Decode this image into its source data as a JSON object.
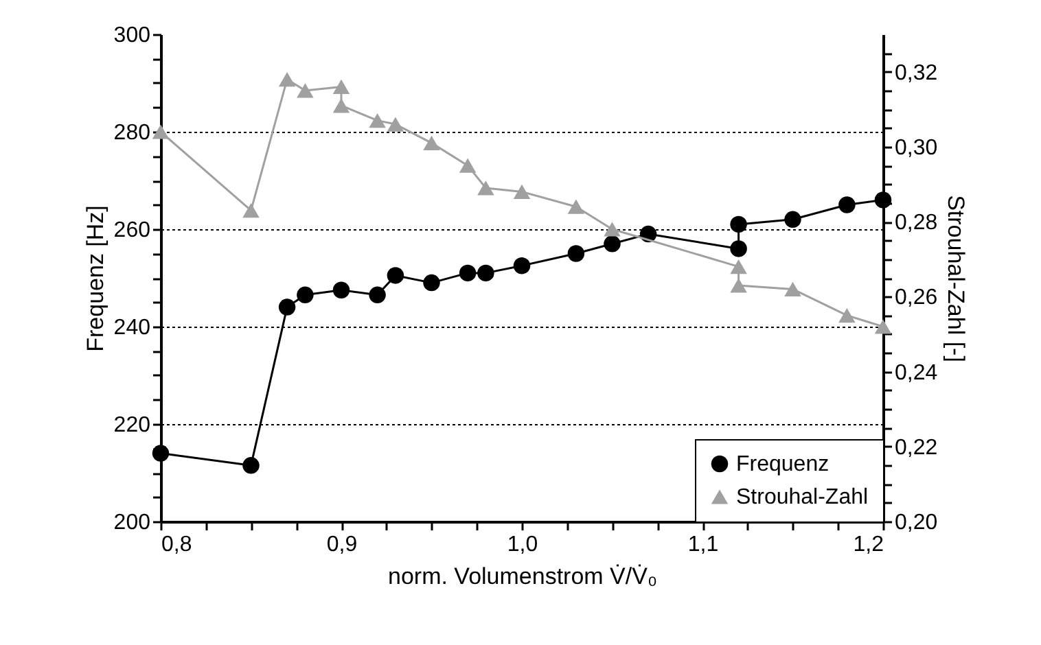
{
  "chart_data": {
    "type": "line",
    "xlabel": "norm. Volumenstrom V̇/V̇₀",
    "ylabel": "Frequenz [Hz]",
    "y2label": "Strouhal-Zahl [-]",
    "xlim": [
      0.8,
      1.2
    ],
    "ylim": [
      200,
      300
    ],
    "y2lim": [
      0.2,
      0.33
    ],
    "xticks": [
      {
        "value": 0.8,
        "label": "0,8"
      },
      {
        "value": 0.825,
        "label": null
      },
      {
        "value": 0.85,
        "label": null
      },
      {
        "value": 0.875,
        "label": null
      },
      {
        "value": 0.9,
        "label": "0,9"
      },
      {
        "value": 0.925,
        "label": null
      },
      {
        "value": 0.95,
        "label": null
      },
      {
        "value": 0.975,
        "label": null
      },
      {
        "value": 1.0,
        "label": "1,0"
      },
      {
        "value": 1.025,
        "label": null
      },
      {
        "value": 1.05,
        "label": null
      },
      {
        "value": 1.075,
        "label": null
      },
      {
        "value": 1.1,
        "label": "1,1"
      },
      {
        "value": 1.125,
        "label": null
      },
      {
        "value": 1.15,
        "label": null
      },
      {
        "value": 1.175,
        "label": null
      },
      {
        "value": 1.2,
        "label": "1,2"
      }
    ],
    "yticks": [
      200,
      {
        "value": 205,
        "label": null
      },
      {
        "value": 210,
        "label": null
      },
      {
        "value": 215,
        "label": null
      },
      220,
      {
        "value": 225,
        "label": null
      },
      {
        "value": 230,
        "label": null
      },
      {
        "value": 235,
        "label": null
      },
      240,
      {
        "value": 245,
        "label": null
      },
      {
        "value": 250,
        "label": null
      },
      {
        "value": 255,
        "label": null
      },
      260,
      {
        "value": 265,
        "label": null
      },
      {
        "value": 270,
        "label": null
      },
      {
        "value": 275,
        "label": null
      },
      280,
      {
        "value": 285,
        "label": null
      },
      {
        "value": 290,
        "label": null
      },
      {
        "value": 295,
        "label": null
      },
      300
    ],
    "y2ticks": [
      {
        "value": 0.2,
        "label": "0,20"
      },
      {
        "value": 0.205,
        "label": null
      },
      {
        "value": 0.21,
        "label": null
      },
      {
        "value": 0.215,
        "label": null
      },
      {
        "value": 0.22,
        "label": "0,22"
      },
      {
        "value": 0.225,
        "label": null
      },
      {
        "value": 0.23,
        "label": null
      },
      {
        "value": 0.235,
        "label": null
      },
      {
        "value": 0.24,
        "label": "0,24"
      },
      {
        "value": 0.245,
        "label": null
      },
      {
        "value": 0.25,
        "label": null
      },
      {
        "value": 0.255,
        "label": null
      },
      {
        "value": 0.26,
        "label": "0,26"
      },
      {
        "value": 0.265,
        "label": null
      },
      {
        "value": 0.27,
        "label": null
      },
      {
        "value": 0.275,
        "label": null
      },
      {
        "value": 0.28,
        "label": "0,28"
      },
      {
        "value": 0.285,
        "label": null
      },
      {
        "value": 0.29,
        "label": null
      },
      {
        "value": 0.295,
        "label": null
      },
      {
        "value": 0.3,
        "label": "0,30"
      },
      {
        "value": 0.305,
        "label": null
      },
      {
        "value": 0.31,
        "label": null
      },
      {
        "value": 0.315,
        "label": null
      },
      {
        "value": 0.32,
        "label": "0,32"
      },
      {
        "value": 0.325,
        "label": null
      }
    ],
    "grid": "y",
    "legend": "bottom right",
    "series": [
      {
        "name": "Frequenz",
        "color": "#000000",
        "marker": "circle",
        "x": [
          0.8,
          0.85,
          0.87,
          0.88,
          0.9,
          0.92,
          0.93,
          0.95,
          0.97,
          0.98,
          1.0,
          1.03,
          1.05,
          1.07,
          1.12,
          1.12,
          1.15,
          1.18,
          1.2
        ],
        "values": [
          214,
          211.5,
          244,
          246.5,
          247.5,
          246.5,
          250.5,
          249,
          251,
          251,
          252.5,
          255,
          257,
          259,
          256,
          261,
          262,
          265,
          266
        ]
      },
      {
        "name": "Strouhal-Zahl",
        "color": "#a0a0a0",
        "marker": "triangle",
        "axis": "y2",
        "x": [
          0.8,
          0.85,
          0.87,
          0.88,
          0.9,
          0.9,
          0.92,
          0.93,
          0.95,
          0.97,
          0.98,
          1.0,
          1.03,
          1.05,
          1.12,
          1.12,
          1.15,
          1.18,
          1.2
        ],
        "values": [
          0.304,
          0.283,
          0.318,
          0.315,
          0.316,
          0.311,
          0.307,
          0.306,
          0.301,
          0.295,
          0.289,
          0.288,
          0.284,
          0.278,
          0.268,
          0.263,
          0.262,
          0.255,
          0.252
        ]
      }
    ]
  }
}
